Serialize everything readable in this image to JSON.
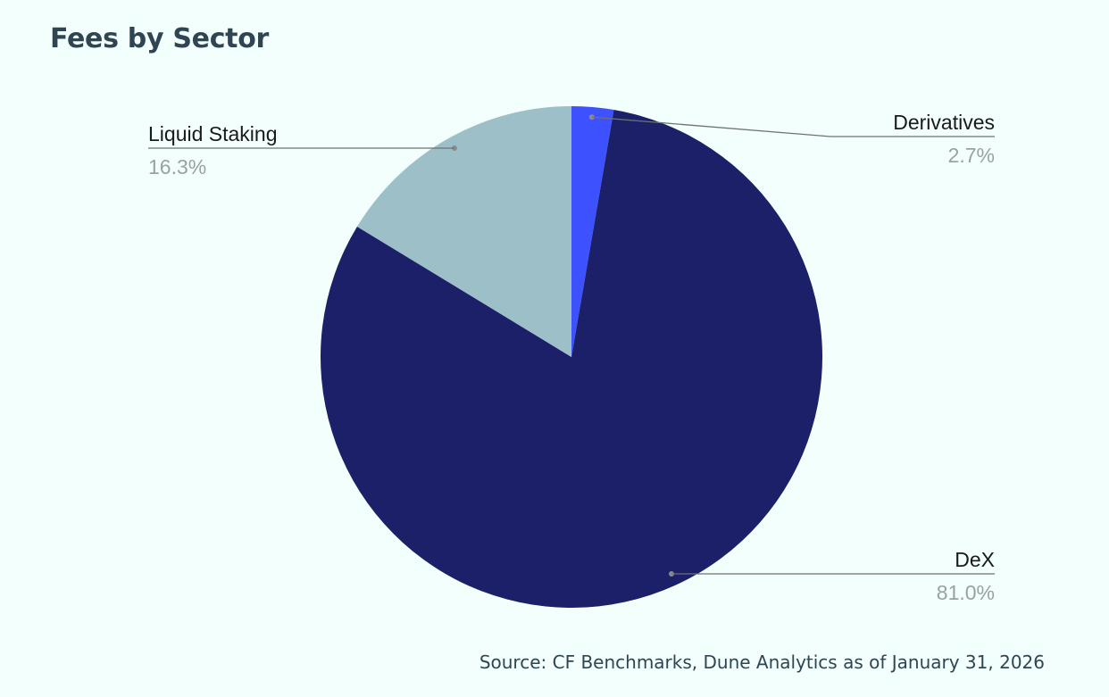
{
  "chart_data": {
    "type": "pie",
    "title": "Fees by Sector",
    "slices": [
      {
        "name": "Derivatives",
        "value": 2.7,
        "label": "2.7%",
        "color": "#3d52fe",
        "label_side": "right",
        "label_anchor": "top"
      },
      {
        "name": "DeX",
        "value": 81.0,
        "label": "81.0%",
        "color": "#1b2068",
        "label_side": "right",
        "label_anchor": "bottom"
      },
      {
        "name": "Liquid Staking",
        "value": 16.3,
        "label": "16.3%",
        "color": "#9dc0c8",
        "label_side": "left",
        "label_anchor": "top"
      }
    ],
    "start": "top",
    "direction": "clockwise",
    "legend": "none",
    "source": "Source: CF Benchmarks, Dune Analytics as of January 31, 2026"
  }
}
